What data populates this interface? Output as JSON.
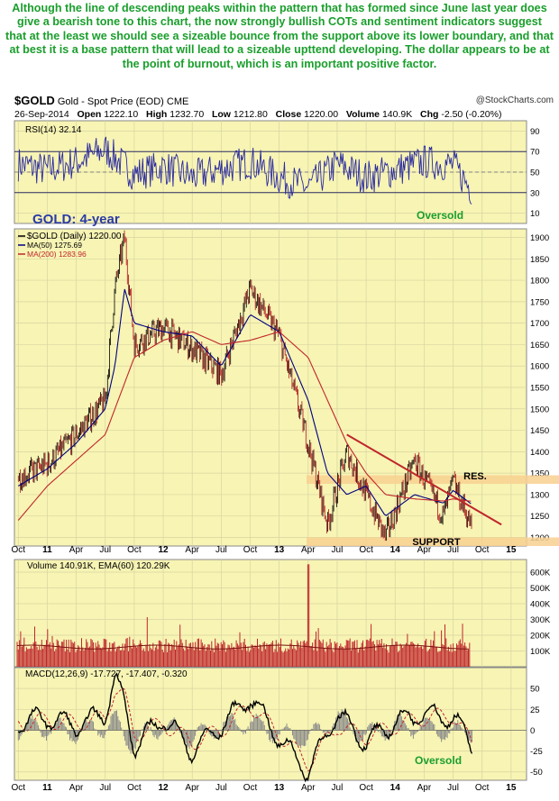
{
  "annotation": "Although the line of descending peaks within the pattern that has formed since June last year does give a bearish tone to this chart, the now strongly bullish COTs and sentiment indicators suggest that at the least we should see a sizeable bounce from the support above its lower boundary, and that at best it is a base pattern that will lead to a sizeable upttend developing. The dollar appears to be at the point of burnout, which is an important  positive factor.",
  "header": {
    "symbol": "$GOLD",
    "name": "Gold - Spot Price (EOD)  CME",
    "date": "26-Sep-2014",
    "open_label": "Open",
    "open": "1222.10",
    "high_label": "High",
    "high": "1232.70",
    "low_label": "Low",
    "low": "1212.80",
    "close_label": "Close",
    "close": "1220.00",
    "volume_label": "Volume",
    "volume": "140.9K",
    "chg_label": "Chg",
    "chg": "-2.50 (-0.20%)",
    "credit": "@StockCharts.com"
  },
  "colors": {
    "panel_bg": "#f7f4b4",
    "annotation_text": "#1a9e2c",
    "rsi_line": "#2a2aa0",
    "ma200": "#c0262c",
    "trendline": "#c0262c",
    "band": "#f8d090",
    "volume_bar": "#c0262c"
  },
  "chart_data": [
    {
      "type": "line",
      "panel": "rsi",
      "label": "RSI(14) 32.14",
      "last_value": 32.14,
      "y_ticks": [
        10,
        30,
        50,
        70,
        90
      ],
      "ylim": [
        0,
        100
      ],
      "reference_lines": [
        30,
        50,
        70
      ],
      "annotation": "Oversold",
      "x": [
        "Oct 10",
        "Jan 11",
        "Apr 11",
        "Jul 11",
        "Oct 11",
        "Jan 12",
        "Apr 12",
        "Jul 12",
        "Oct 12",
        "Jan 13",
        "Apr 13",
        "Jul 13",
        "Oct 13",
        "Jan 14",
        "Apr 14",
        "Jul 14",
        "Sep 14"
      ],
      "values": [
        58,
        52,
        60,
        72,
        48,
        55,
        45,
        53,
        60,
        45,
        35,
        58,
        45,
        52,
        60,
        57,
        32
      ]
    },
    {
      "type": "line",
      "panel": "price",
      "title": "GOLD: 4-year",
      "legend": [
        {
          "name": "$GOLD (Daily) 1220.00",
          "color": "#000000"
        },
        {
          "name": "MA(50) 1275.69",
          "color": "#000080"
        },
        {
          "name": "MA(200) 1283.96",
          "color": "#c0262c"
        }
      ],
      "y_ticks": [
        1200,
        1250,
        1300,
        1350,
        1400,
        1450,
        1500,
        1550,
        1600,
        1650,
        1700,
        1750,
        1800,
        1850,
        1900
      ],
      "ylim": [
        1180,
        1920
      ],
      "x": [
        "Oct 10",
        "Jan 11",
        "Apr 11",
        "Jul 11",
        "Aug 11",
        "Sep 11",
        "Oct 11",
        "Jan 12",
        "Apr 12",
        "Jul 12",
        "Oct 12",
        "Jan 13",
        "Apr 13",
        "Jun 13",
        "Aug 13",
        "Oct 13",
        "Dec 13",
        "Mar 14",
        "Jun 14",
        "Jul 14",
        "Sep 14"
      ],
      "series": [
        {
          "name": "$GOLD (Daily) 1220.00",
          "values": [
            1340,
            1370,
            1440,
            1520,
            1780,
            1900,
            1650,
            1690,
            1640,
            1580,
            1780,
            1670,
            1420,
            1230,
            1400,
            1300,
            1200,
            1380,
            1250,
            1330,
            1220
          ]
        },
        {
          "name": "MA(50) 1275.69",
          "values": [
            1320,
            1360,
            1420,
            1500,
            1600,
            1780,
            1700,
            1680,
            1670,
            1600,
            1720,
            1680,
            1520,
            1350,
            1300,
            1320,
            1250,
            1300,
            1280,
            1310,
            1276
          ]
        },
        {
          "name": "MA(200) 1283.96",
          "values": [
            1240,
            1320,
            1380,
            1440,
            1500,
            1560,
            1620,
            1660,
            1680,
            1650,
            1660,
            1680,
            1620,
            1520,
            1420,
            1350,
            1300,
            1290,
            1285,
            1290,
            1284
          ]
        }
      ],
      "annotations": [
        {
          "text": "RES.",
          "band": [
            1325,
            1345
          ]
        },
        {
          "text": "SUPPORT",
          "band": [
            1180,
            1200
          ]
        }
      ],
      "trendline": {
        "from": {
          "x": "Aug 13",
          "y": 1440
        },
        "to": {
          "x": "Dec 14",
          "y": 1230
        }
      }
    },
    {
      "type": "bar",
      "panel": "volume",
      "label": "Volume 140.91K, EMA(60) 120.29K",
      "y_tick_labels": [
        "100K",
        "200K",
        "300K",
        "400K",
        "500K",
        "600K"
      ],
      "y_ticks": [
        100000,
        200000,
        300000,
        400000,
        500000,
        600000
      ],
      "ylim": [
        0,
        680000
      ],
      "peak": {
        "x": "Apr 13",
        "value": 650000
      }
    },
    {
      "type": "line",
      "panel": "macd",
      "label": "MACD(12,26,9) -17.727, -17.407, -0.320",
      "y_ticks": [
        -50,
        -25,
        0,
        25,
        50
      ],
      "ylim": [
        -60,
        75
      ],
      "annotation": "Oversold",
      "x": [
        "Oct 10",
        "Jan 11",
        "Apr 11",
        "Jul 11",
        "Aug 11",
        "Sep 11",
        "Oct 11",
        "Jan 12",
        "Apr 12",
        "Jul 12",
        "Oct 12",
        "Jan 13",
        "Apr 13",
        "Jul 13",
        "Oct 13",
        "Jan 14",
        "Apr 14",
        "Jul 14",
        "Sep 14"
      ],
      "series": [
        {
          "name": "MACD",
          "values": [
            10,
            15,
            5,
            20,
            65,
            30,
            -20,
            15,
            -25,
            5,
            40,
            -10,
            -50,
            20,
            -15,
            10,
            20,
            15,
            -18
          ]
        },
        {
          "name": "Signal",
          "values": [
            8,
            12,
            8,
            15,
            50,
            40,
            -5,
            8,
            -15,
            0,
            30,
            -5,
            -40,
            5,
            -8,
            5,
            15,
            18,
            -17
          ]
        }
      ]
    }
  ],
  "x_axis": {
    "labels": [
      "Oct",
      "11",
      "Apr",
      "Jul",
      "Oct",
      "12",
      "Apr",
      "Jul",
      "Oct",
      "13",
      "Apr",
      "Jul",
      "Oct",
      "14",
      "Apr",
      "Jul",
      "Oct",
      "15"
    ],
    "years": [
      "11",
      "12",
      "13",
      "14",
      "15"
    ]
  }
}
